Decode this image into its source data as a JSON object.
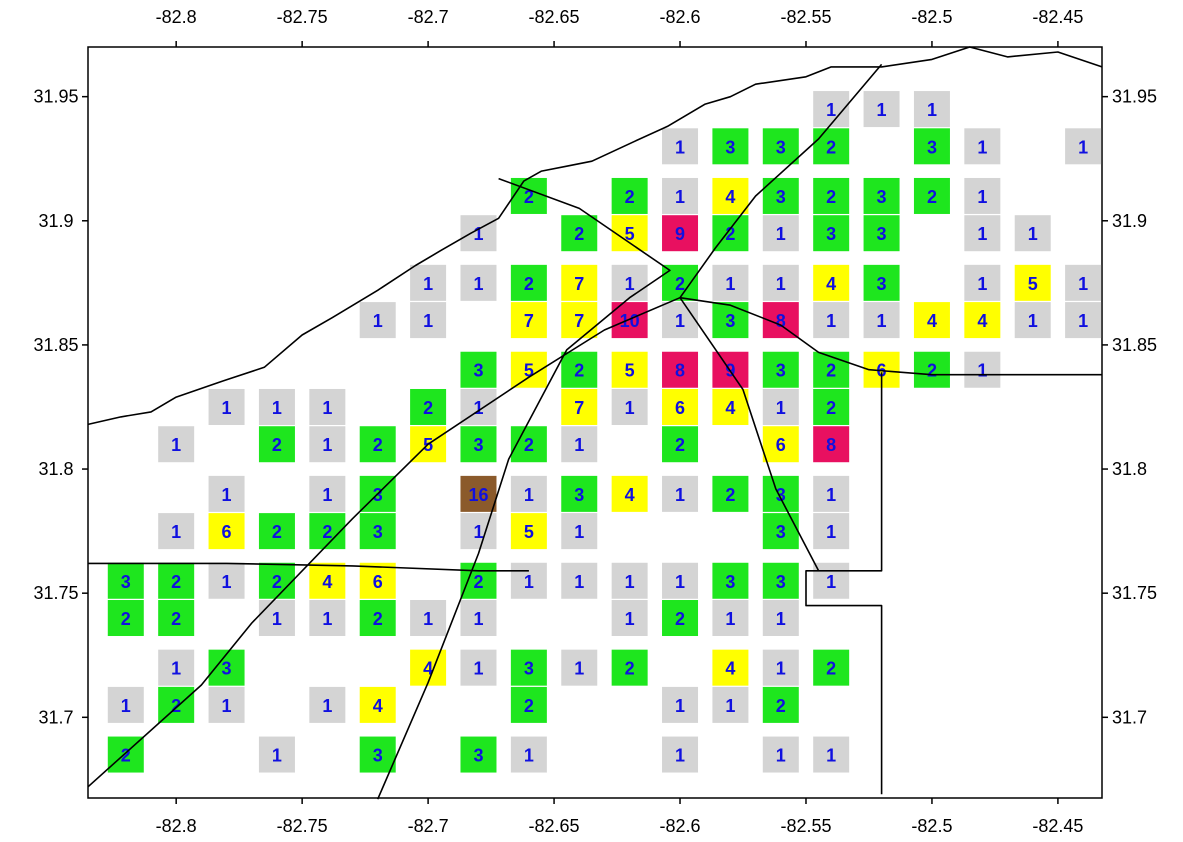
{
  "chart_data": {
    "type": "heatmap",
    "title": "",
    "xlabel": "",
    "ylabel": "",
    "xlim": [
      -82.835,
      -82.4325
    ],
    "ylim": [
      31.6675,
      31.97
    ],
    "x_ticks": [
      -82.8,
      -82.75,
      -82.7,
      -82.65,
      -82.6,
      -82.55,
      -82.5,
      -82.45
    ],
    "y_ticks": [
      31.95,
      31.9,
      31.85,
      31.8,
      31.75,
      31.7
    ],
    "x_tick_labels": [
      "-82.8",
      "-82.75",
      "-82.7",
      "-82.65",
      "-82.6",
      "-82.55",
      "-82.5",
      "-82.45"
    ],
    "y_tick_labels": [
      "31.95",
      "31.9",
      "31.85",
      "31.8",
      "31.75",
      "31.7"
    ],
    "color_classes": [
      {
        "min": 1,
        "max": 1,
        "color": "#d4d4d4"
      },
      {
        "min": 2,
        "max": 3,
        "color": "#1ee61e"
      },
      {
        "min": 4,
        "max": 7,
        "color": "#ffff00"
      },
      {
        "min": 8,
        "max": 10,
        "color": "#e81060"
      },
      {
        "min": 11,
        "max": 99,
        "color": "#8b5a2b"
      }
    ],
    "cells": [
      {
        "x": -82.54,
        "y": 31.945,
        "value": 1
      },
      {
        "x": -82.52,
        "y": 31.945,
        "value": 1
      },
      {
        "x": -82.5,
        "y": 31.945,
        "value": 1
      },
      {
        "x": -82.6,
        "y": 31.93,
        "value": 1
      },
      {
        "x": -82.58,
        "y": 31.93,
        "value": 3
      },
      {
        "x": -82.56,
        "y": 31.93,
        "value": 3
      },
      {
        "x": -82.54,
        "y": 31.93,
        "value": 2
      },
      {
        "x": -82.5,
        "y": 31.93,
        "value": 3
      },
      {
        "x": -82.48,
        "y": 31.93,
        "value": 1
      },
      {
        "x": -82.44,
        "y": 31.93,
        "value": 1
      },
      {
        "x": -82.66,
        "y": 31.91,
        "value": 2
      },
      {
        "x": -82.62,
        "y": 31.91,
        "value": 2
      },
      {
        "x": -82.6,
        "y": 31.91,
        "value": 1
      },
      {
        "x": -82.58,
        "y": 31.91,
        "value": 4
      },
      {
        "x": -82.56,
        "y": 31.91,
        "value": 3
      },
      {
        "x": -82.54,
        "y": 31.91,
        "value": 2
      },
      {
        "x": -82.52,
        "y": 31.91,
        "value": 3
      },
      {
        "x": -82.5,
        "y": 31.91,
        "value": 2
      },
      {
        "x": -82.48,
        "y": 31.91,
        "value": 1
      },
      {
        "x": -82.68,
        "y": 31.895,
        "value": 1
      },
      {
        "x": -82.64,
        "y": 31.895,
        "value": 2
      },
      {
        "x": -82.62,
        "y": 31.895,
        "value": 5
      },
      {
        "x": -82.6,
        "y": 31.895,
        "value": 9
      },
      {
        "x": -82.58,
        "y": 31.895,
        "value": 2
      },
      {
        "x": -82.56,
        "y": 31.895,
        "value": 1
      },
      {
        "x": -82.54,
        "y": 31.895,
        "value": 3
      },
      {
        "x": -82.52,
        "y": 31.895,
        "value": 3
      },
      {
        "x": -82.48,
        "y": 31.895,
        "value": 1
      },
      {
        "x": -82.46,
        "y": 31.895,
        "value": 1
      },
      {
        "x": -82.7,
        "y": 31.875,
        "value": 1
      },
      {
        "x": -82.68,
        "y": 31.875,
        "value": 1
      },
      {
        "x": -82.66,
        "y": 31.875,
        "value": 2
      },
      {
        "x": -82.64,
        "y": 31.875,
        "value": 7
      },
      {
        "x": -82.62,
        "y": 31.875,
        "value": 1
      },
      {
        "x": -82.6,
        "y": 31.875,
        "value": 2
      },
      {
        "x": -82.58,
        "y": 31.875,
        "value": 1
      },
      {
        "x": -82.56,
        "y": 31.875,
        "value": 1
      },
      {
        "x": -82.54,
        "y": 31.875,
        "value": 4
      },
      {
        "x": -82.52,
        "y": 31.875,
        "value": 3
      },
      {
        "x": -82.48,
        "y": 31.875,
        "value": 1
      },
      {
        "x": -82.46,
        "y": 31.875,
        "value": 5
      },
      {
        "x": -82.44,
        "y": 31.875,
        "value": 1
      },
      {
        "x": -82.72,
        "y": 31.86,
        "value": 1
      },
      {
        "x": -82.7,
        "y": 31.86,
        "value": 1
      },
      {
        "x": -82.66,
        "y": 31.86,
        "value": 7
      },
      {
        "x": -82.64,
        "y": 31.86,
        "value": 7
      },
      {
        "x": -82.62,
        "y": 31.86,
        "value": 10
      },
      {
        "x": -82.6,
        "y": 31.86,
        "value": 1
      },
      {
        "x": -82.58,
        "y": 31.86,
        "value": 3
      },
      {
        "x": -82.56,
        "y": 31.86,
        "value": 8
      },
      {
        "x": -82.54,
        "y": 31.86,
        "value": 1
      },
      {
        "x": -82.52,
        "y": 31.86,
        "value": 1
      },
      {
        "x": -82.5,
        "y": 31.86,
        "value": 4
      },
      {
        "x": -82.48,
        "y": 31.86,
        "value": 4
      },
      {
        "x": -82.46,
        "y": 31.86,
        "value": 1
      },
      {
        "x": -82.44,
        "y": 31.86,
        "value": 1
      },
      {
        "x": -82.68,
        "y": 31.84,
        "value": 3
      },
      {
        "x": -82.66,
        "y": 31.84,
        "value": 5
      },
      {
        "x": -82.64,
        "y": 31.84,
        "value": 2
      },
      {
        "x": -82.62,
        "y": 31.84,
        "value": 5
      },
      {
        "x": -82.6,
        "y": 31.84,
        "value": 8
      },
      {
        "x": -82.58,
        "y": 31.84,
        "value": 9
      },
      {
        "x": -82.56,
        "y": 31.84,
        "value": 3
      },
      {
        "x": -82.54,
        "y": 31.84,
        "value": 2
      },
      {
        "x": -82.52,
        "y": 31.84,
        "value": 6
      },
      {
        "x": -82.5,
        "y": 31.84,
        "value": 2
      },
      {
        "x": -82.48,
        "y": 31.84,
        "value": 1
      },
      {
        "x": -82.78,
        "y": 31.825,
        "value": 1
      },
      {
        "x": -82.76,
        "y": 31.825,
        "value": 1
      },
      {
        "x": -82.74,
        "y": 31.825,
        "value": 1
      },
      {
        "x": -82.7,
        "y": 31.825,
        "value": 2
      },
      {
        "x": -82.68,
        "y": 31.825,
        "value": 1
      },
      {
        "x": -82.64,
        "y": 31.825,
        "value": 7
      },
      {
        "x": -82.62,
        "y": 31.825,
        "value": 1
      },
      {
        "x": -82.6,
        "y": 31.825,
        "value": 6
      },
      {
        "x": -82.58,
        "y": 31.825,
        "value": 4
      },
      {
        "x": -82.56,
        "y": 31.825,
        "value": 1
      },
      {
        "x": -82.54,
        "y": 31.825,
        "value": 2
      },
      {
        "x": -82.8,
        "y": 31.81,
        "value": 1
      },
      {
        "x": -82.76,
        "y": 31.81,
        "value": 2
      },
      {
        "x": -82.74,
        "y": 31.81,
        "value": 1
      },
      {
        "x": -82.72,
        "y": 31.81,
        "value": 2
      },
      {
        "x": -82.7,
        "y": 31.81,
        "value": 5
      },
      {
        "x": -82.68,
        "y": 31.81,
        "value": 3
      },
      {
        "x": -82.66,
        "y": 31.81,
        "value": 2
      },
      {
        "x": -82.64,
        "y": 31.81,
        "value": 1
      },
      {
        "x": -82.6,
        "y": 31.81,
        "value": 2
      },
      {
        "x": -82.56,
        "y": 31.81,
        "value": 6
      },
      {
        "x": -82.54,
        "y": 31.81,
        "value": 8
      },
      {
        "x": -82.78,
        "y": 31.79,
        "value": 1
      },
      {
        "x": -82.74,
        "y": 31.79,
        "value": 1
      },
      {
        "x": -82.72,
        "y": 31.79,
        "value": 3
      },
      {
        "x": -82.68,
        "y": 31.79,
        "value": 16
      },
      {
        "x": -82.66,
        "y": 31.79,
        "value": 1
      },
      {
        "x": -82.64,
        "y": 31.79,
        "value": 3
      },
      {
        "x": -82.62,
        "y": 31.79,
        "value": 4
      },
      {
        "x": -82.6,
        "y": 31.79,
        "value": 1
      },
      {
        "x": -82.58,
        "y": 31.79,
        "value": 2
      },
      {
        "x": -82.56,
        "y": 31.79,
        "value": 3
      },
      {
        "x": -82.54,
        "y": 31.79,
        "value": 1
      },
      {
        "x": -82.8,
        "y": 31.775,
        "value": 1
      },
      {
        "x": -82.78,
        "y": 31.775,
        "value": 6
      },
      {
        "x": -82.76,
        "y": 31.775,
        "value": 2
      },
      {
        "x": -82.74,
        "y": 31.775,
        "value": 2
      },
      {
        "x": -82.72,
        "y": 31.775,
        "value": 3
      },
      {
        "x": -82.68,
        "y": 31.775,
        "value": 1
      },
      {
        "x": -82.66,
        "y": 31.775,
        "value": 5
      },
      {
        "x": -82.64,
        "y": 31.775,
        "value": 1
      },
      {
        "x": -82.56,
        "y": 31.775,
        "value": 3
      },
      {
        "x": -82.54,
        "y": 31.775,
        "value": 1
      },
      {
        "x": -82.82,
        "y": 31.755,
        "value": 3
      },
      {
        "x": -82.8,
        "y": 31.755,
        "value": 2
      },
      {
        "x": -82.78,
        "y": 31.755,
        "value": 1
      },
      {
        "x": -82.76,
        "y": 31.755,
        "value": 2
      },
      {
        "x": -82.74,
        "y": 31.755,
        "value": 4
      },
      {
        "x": -82.72,
        "y": 31.755,
        "value": 6
      },
      {
        "x": -82.68,
        "y": 31.755,
        "value": 2
      },
      {
        "x": -82.66,
        "y": 31.755,
        "value": 1
      },
      {
        "x": -82.64,
        "y": 31.755,
        "value": 1
      },
      {
        "x": -82.62,
        "y": 31.755,
        "value": 1
      },
      {
        "x": -82.6,
        "y": 31.755,
        "value": 1
      },
      {
        "x": -82.58,
        "y": 31.755,
        "value": 3
      },
      {
        "x": -82.56,
        "y": 31.755,
        "value": 3
      },
      {
        "x": -82.54,
        "y": 31.755,
        "value": 1
      },
      {
        "x": -82.82,
        "y": 31.74,
        "value": 2
      },
      {
        "x": -82.8,
        "y": 31.74,
        "value": 2
      },
      {
        "x": -82.76,
        "y": 31.74,
        "value": 1
      },
      {
        "x": -82.74,
        "y": 31.74,
        "value": 1
      },
      {
        "x": -82.72,
        "y": 31.74,
        "value": 2
      },
      {
        "x": -82.7,
        "y": 31.74,
        "value": 1
      },
      {
        "x": -82.68,
        "y": 31.74,
        "value": 1
      },
      {
        "x": -82.62,
        "y": 31.74,
        "value": 1
      },
      {
        "x": -82.6,
        "y": 31.74,
        "value": 2
      },
      {
        "x": -82.58,
        "y": 31.74,
        "value": 1
      },
      {
        "x": -82.56,
        "y": 31.74,
        "value": 1
      },
      {
        "x": -82.8,
        "y": 31.72,
        "value": 1
      },
      {
        "x": -82.78,
        "y": 31.72,
        "value": 3
      },
      {
        "x": -82.7,
        "y": 31.72,
        "value": 4
      },
      {
        "x": -82.68,
        "y": 31.72,
        "value": 1
      },
      {
        "x": -82.66,
        "y": 31.72,
        "value": 3
      },
      {
        "x": -82.64,
        "y": 31.72,
        "value": 1
      },
      {
        "x": -82.62,
        "y": 31.72,
        "value": 2
      },
      {
        "x": -82.58,
        "y": 31.72,
        "value": 4
      },
      {
        "x": -82.56,
        "y": 31.72,
        "value": 1
      },
      {
        "x": -82.54,
        "y": 31.72,
        "value": 2
      },
      {
        "x": -82.82,
        "y": 31.705,
        "value": 1
      },
      {
        "x": -82.8,
        "y": 31.705,
        "value": 2
      },
      {
        "x": -82.78,
        "y": 31.705,
        "value": 1
      },
      {
        "x": -82.74,
        "y": 31.705,
        "value": 1
      },
      {
        "x": -82.72,
        "y": 31.705,
        "value": 4
      },
      {
        "x": -82.66,
        "y": 31.705,
        "value": 2
      },
      {
        "x": -82.6,
        "y": 31.705,
        "value": 1
      },
      {
        "x": -82.58,
        "y": 31.705,
        "value": 1
      },
      {
        "x": -82.56,
        "y": 31.705,
        "value": 2
      },
      {
        "x": -82.82,
        "y": 31.685,
        "value": 2
      },
      {
        "x": -82.76,
        "y": 31.685,
        "value": 1
      },
      {
        "x": -82.72,
        "y": 31.685,
        "value": 3
      },
      {
        "x": -82.68,
        "y": 31.685,
        "value": 3
      },
      {
        "x": -82.66,
        "y": 31.685,
        "value": 1
      },
      {
        "x": -82.6,
        "y": 31.685,
        "value": 1
      },
      {
        "x": -82.56,
        "y": 31.685,
        "value": 1
      },
      {
        "x": -82.54,
        "y": 31.685,
        "value": 1
      }
    ],
    "boundary_lines": [
      [
        [
          -82.835,
          31.818
        ],
        [
          -82.822,
          31.821
        ],
        [
          -82.81,
          31.823
        ],
        [
          -82.8,
          31.829
        ],
        [
          -82.78,
          31.836
        ],
        [
          -82.765,
          31.841
        ],
        [
          -82.75,
          31.854
        ],
        [
          -82.738,
          31.861
        ],
        [
          -82.72,
          31.872
        ],
        [
          -82.705,
          31.882
        ],
        [
          -82.695,
          31.888
        ],
        [
          -82.683,
          31.895
        ],
        [
          -82.672,
          31.901
        ],
        [
          -82.662,
          31.916
        ],
        [
          -82.655,
          31.92
        ],
        [
          -82.645,
          31.922
        ],
        [
          -82.635,
          31.924
        ],
        [
          -82.618,
          31.932
        ],
        [
          -82.605,
          31.938
        ],
        [
          -82.59,
          31.947
        ],
        [
          -82.58,
          31.95
        ],
        [
          -82.57,
          31.955
        ],
        [
          -82.55,
          31.958
        ],
        [
          -82.54,
          31.962
        ],
        [
          -82.52,
          31.962
        ],
        [
          -82.5,
          31.965
        ],
        [
          -82.485,
          31.97
        ],
        [
          -82.47,
          31.966
        ],
        [
          -82.45,
          31.968
        ],
        [
          -82.4325,
          31.962
        ]
      ],
      [
        [
          -82.835,
          31.762
        ],
        [
          -82.78,
          31.762
        ],
        [
          -82.73,
          31.761
        ],
        [
          -82.68,
          31.759
        ],
        [
          -82.66,
          31.759
        ]
      ],
      [
        [
          -82.6,
          31.869
        ],
        [
          -82.58,
          31.866
        ],
        [
          -82.56,
          31.858
        ],
        [
          -82.545,
          31.847
        ],
        [
          -82.525,
          31.84
        ],
        [
          -82.5,
          31.838
        ],
        [
          -82.47,
          31.838
        ],
        [
          -82.4325,
          31.838
        ]
      ],
      [
        [
          -82.835,
          31.672
        ],
        [
          -82.79,
          31.713
        ],
        [
          -82.77,
          31.738
        ],
        [
          -82.73,
          31.78
        ],
        [
          -82.7,
          31.81
        ],
        [
          -82.66,
          31.837
        ],
        [
          -82.63,
          31.856
        ],
        [
          -82.6,
          31.869
        ],
        [
          -82.586,
          31.889
        ],
        [
          -82.57,
          31.91
        ],
        [
          -82.545,
          31.933
        ],
        [
          -82.52,
          31.963
        ]
      ],
      [
        [
          -82.72,
          31.667
        ],
        [
          -82.7,
          31.714
        ],
        [
          -82.68,
          31.766
        ],
        [
          -82.668,
          31.804
        ],
        [
          -82.645,
          31.848
        ],
        [
          -82.62,
          31.869
        ],
        [
          -82.604,
          31.88
        ],
        [
          -82.64,
          31.905
        ],
        [
          -82.672,
          31.917
        ]
      ],
      [
        [
          -82.6,
          31.869
        ],
        [
          -82.575,
          31.832
        ],
        [
          -82.562,
          31.792
        ],
        [
          -82.545,
          31.759
        ]
      ],
      [
        [
          -82.52,
          31.839
        ],
        [
          -82.52,
          31.759
        ],
        [
          -82.55,
          31.759
        ],
        [
          -82.55,
          31.745
        ],
        [
          -82.52,
          31.745
        ],
        [
          -82.52,
          31.669
        ]
      ]
    ]
  }
}
